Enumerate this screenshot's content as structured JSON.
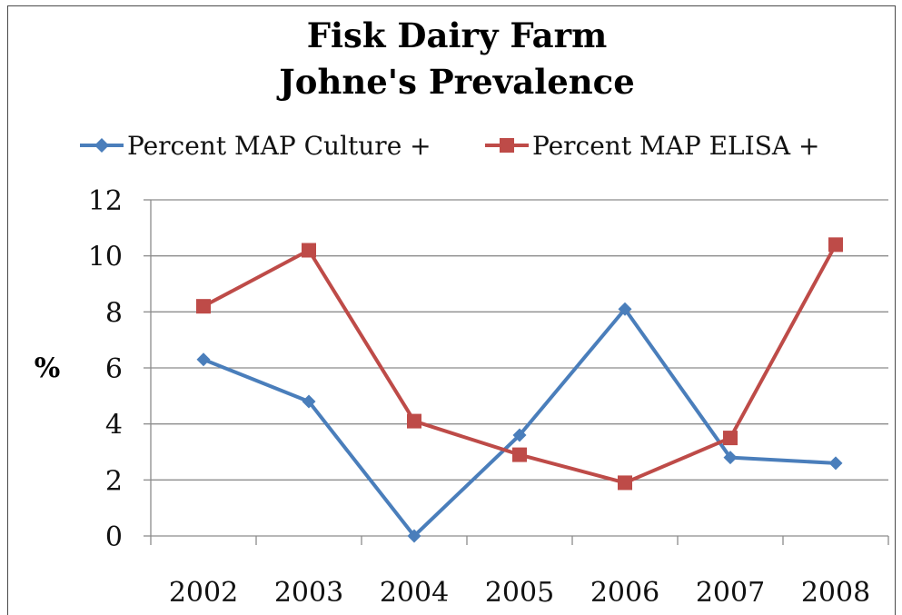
{
  "chart_data": {
    "type": "line",
    "title": [
      "Fisk Dairy Farm",
      "Johne's Prevalence"
    ],
    "ylabel": "%",
    "xlabel": "",
    "categories": [
      "2002",
      "2003",
      "2004",
      "2005",
      "2006",
      "2007",
      "2008"
    ],
    "ylim": [
      0,
      12
    ],
    "yticks": [
      0,
      2,
      4,
      6,
      8,
      10,
      12
    ],
    "grid": true,
    "legend_position": "top",
    "series": [
      {
        "name": "Percent MAP Culture +",
        "values": [
          6.3,
          4.8,
          0.0,
          3.6,
          8.1,
          2.8,
          2.6
        ],
        "color": "#4a7ebb",
        "marker": "diamond"
      },
      {
        "name": "Percent MAP ELISA +",
        "values": [
          8.2,
          10.2,
          4.1,
          2.9,
          1.9,
          3.5,
          10.4
        ],
        "color": "#be4b48",
        "marker": "square"
      }
    ]
  }
}
